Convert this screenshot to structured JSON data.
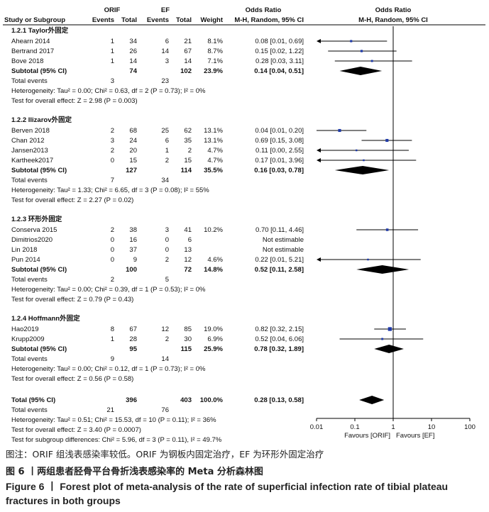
{
  "header": {
    "group1": "ORIF",
    "group2": "EF",
    "odds_ratio": "Odds Ratio",
    "odds_ratio_plot": "Odds Ratio",
    "study": "Study or Subgroup",
    "events1": "Events",
    "total1": "Total",
    "events2": "Events",
    "total2": "Total",
    "weight": "Weight",
    "method": "M-H, Random, 95% CI",
    "method_plot": "M-H, Random, 95% CI"
  },
  "subgroups": [
    {
      "title": "1.2.1 Taylor外固定",
      "studies": [
        {
          "name": "Ahearn  2014",
          "e1": "1",
          "t1": "34",
          "e2": "6",
          "t2": "21",
          "w": "8.1%",
          "ci": "0.08 [0.01, 0.69]",
          "or": 0.08,
          "lo": 0.01,
          "hi": 0.69,
          "arrow_left": true
        },
        {
          "name": "Bertrand  2017",
          "e1": "1",
          "t1": "26",
          "e2": "14",
          "t2": "67",
          "w": "8.7%",
          "ci": "0.15 [0.02, 1.22]",
          "or": 0.15,
          "lo": 0.02,
          "hi": 1.22
        },
        {
          "name": "Bove 2018",
          "e1": "1",
          "t1": "14",
          "e2": "3",
          "t2": "14",
          "w": "7.1%",
          "ci": "0.28 [0.03, 3.11]",
          "or": 0.28,
          "lo": 0.03,
          "hi": 3.11
        }
      ],
      "subtotal": {
        "label": "Subtotal (95% CI)",
        "t1": "74",
        "t2": "102",
        "w": "23.9%",
        "ci": "0.14 [0.04, 0.51]",
        "or": 0.14,
        "lo": 0.04,
        "hi": 0.51
      },
      "total_events": {
        "label": "Total events",
        "e1": "3",
        "e2": "23"
      },
      "heterogeneity": "Heterogeneity: Tau² = 0.00; Chi² = 0.63, df = 2 (P = 0.73); I² = 0%",
      "overall": "Test for overall effect: Z = 2.98 (P = 0.003)"
    },
    {
      "title": "1.2.2 Ilizarov外固定",
      "studies": [
        {
          "name": "Berven  2018",
          "e1": "2",
          "t1": "68",
          "e2": "25",
          "t2": "62",
          "w": "13.1%",
          "ci": "0.04 [0.01, 0.20]",
          "or": 0.04,
          "lo": 0.01,
          "hi": 0.2
        },
        {
          "name": "Chan  2012",
          "e1": "3",
          "t1": "24",
          "e2": "6",
          "t2": "35",
          "w": "13.1%",
          "ci": "0.69 [0.15, 3.08]",
          "or": 0.69,
          "lo": 0.15,
          "hi": 3.08
        },
        {
          "name": "Jansen2013",
          "e1": "2",
          "t1": "20",
          "e2": "1",
          "t2": "2",
          "w": "4.7%",
          "ci": "0.11 [0.00, 2.55]",
          "or": 0.11,
          "lo": 0.0,
          "hi": 2.55,
          "arrow_left": true
        },
        {
          "name": "Kartheek2017",
          "e1": "0",
          "t1": "15",
          "e2": "2",
          "t2": "15",
          "w": "4.7%",
          "ci": "0.17 [0.01, 3.96]",
          "or": 0.17,
          "lo": 0.01,
          "hi": 3.96,
          "arrow_left": true
        }
      ],
      "subtotal": {
        "label": "Subtotal (95% CI)",
        "t1": "127",
        "t2": "114",
        "w": "35.5%",
        "ci": "0.16 [0.03, 0.78]",
        "or": 0.16,
        "lo": 0.03,
        "hi": 0.78
      },
      "total_events": {
        "label": "Total events",
        "e1": "7",
        "e2": "34"
      },
      "heterogeneity": "Heterogeneity: Tau² = 1.33; Chi² = 6.65, df = 3 (P = 0.08); I² = 55%",
      "overall": "Test for overall effect: Z = 2.27 (P = 0.02)"
    },
    {
      "title": "1.2.3 环形外固定",
      "studies": [
        {
          "name": "Conserva 2015",
          "e1": "2",
          "t1": "38",
          "e2": "3",
          "t2": "41",
          "w": "10.2%",
          "ci": "0.70 [0.11, 4.46]",
          "or": 0.7,
          "lo": 0.11,
          "hi": 4.46
        },
        {
          "name": "Dimitrios2020",
          "e1": "0",
          "t1": "16",
          "e2": "0",
          "t2": "6",
          "w": "",
          "ci": "Not estimable"
        },
        {
          "name": "Lin 2018",
          "e1": "0",
          "t1": "37",
          "e2": "0",
          "t2": "13",
          "w": "",
          "ci": "Not estimable"
        },
        {
          "name": "Pun 2014",
          "e1": "0",
          "t1": "9",
          "e2": "2",
          "t2": "12",
          "w": "4.6%",
          "ci": "0.22 [0.01, 5.21]",
          "or": 0.22,
          "lo": 0.01,
          "hi": 5.21,
          "arrow_left": true
        }
      ],
      "subtotal": {
        "label": "Subtotal (95% CI)",
        "t1": "100",
        "t2": "72",
        "w": "14.8%",
        "ci": "0.52 [0.11, 2.58]",
        "or": 0.52,
        "lo": 0.11,
        "hi": 2.58
      },
      "total_events": {
        "label": "Total events",
        "e1": "2",
        "e2": "5"
      },
      "heterogeneity": "Heterogeneity: Tau² = 0.00; Chi² = 0.39, df = 1 (P = 0.53); I² = 0%",
      "overall": "Test for overall effect: Z = 0.79 (P = 0.43)"
    },
    {
      "title": "1.2.4 Hoffmann外固定",
      "studies": [
        {
          "name": "Hao2019",
          "e1": "8",
          "t1": "67",
          "e2": "12",
          "t2": "85",
          "w": "19.0%",
          "ci": "0.82 [0.32, 2.15]",
          "or": 0.82,
          "lo": 0.32,
          "hi": 2.15
        },
        {
          "name": "Krupp2009",
          "e1": "1",
          "t1": "28",
          "e2": "2",
          "t2": "30",
          "w": "6.9%",
          "ci": "0.52 [0.04, 6.06]",
          "or": 0.52,
          "lo": 0.04,
          "hi": 6.06
        }
      ],
      "subtotal": {
        "label": "Subtotal (95% CI)",
        "t1": "95",
        "t2": "115",
        "w": "25.9%",
        "ci": "0.78 [0.32, 1.89]",
        "or": 0.78,
        "lo": 0.32,
        "hi": 1.89
      },
      "total_events": {
        "label": "Total events",
        "e1": "9",
        "e2": "14"
      },
      "heterogeneity": "Heterogeneity: Tau² = 0.00; Chi² = 0.12, df = 1 (P = 0.73); I² = 0%",
      "overall": "Test for overall effect: Z = 0.56 (P = 0.58)"
    }
  ],
  "total": {
    "label": "Total (95% CI)",
    "t1": "396",
    "t2": "403",
    "w": "100.0%",
    "ci": "0.28 [0.13, 0.58]",
    "or": 0.28,
    "lo": 0.13,
    "hi": 0.58
  },
  "total_events": {
    "label": "Total events",
    "e1": "21",
    "e2": "76"
  },
  "total_heterogeneity": "Heterogeneity: Tau² = 0.51; Chi² = 15.53, df = 10 (P = 0.11); I² = 36%",
  "total_overall": "Test for overall effect: Z = 3.40 (P = 0.0007)",
  "subgroup_diff": "Test for subgroup differences: Chi² = 5.96, df = 3 (P = 0.11), I² = 49.7%",
  "axis": {
    "ticks": [
      0.01,
      0.1,
      1,
      10,
      100
    ],
    "tick_labels": [
      "0.01",
      "0.1",
      "1",
      "10",
      "100"
    ],
    "favours_left": "Favours [ORIF]",
    "favours_right": "Favours [EF]"
  },
  "chart_data": {
    "type": "forest",
    "scale": "log",
    "xlim": [
      0.01,
      100
    ],
    "reference_line": 1,
    "colors": {
      "study_marker": "#1f3aa8",
      "summary_diamond": "#000000"
    }
  },
  "caption": {
    "note": "图注：ORIF 组浅表感染率较低。ORIF 为钢板内固定治疗，EF 为环形外固定治疗",
    "title_cn": "图 6 丨两组患者胫骨平台骨折浅表感染率的 Meta 分析森林图",
    "title_en": "Figure 6 丨 Forest plot of meta-analysis of the rate of superficial infection rate of tibial plateau fractures in both groups"
  }
}
